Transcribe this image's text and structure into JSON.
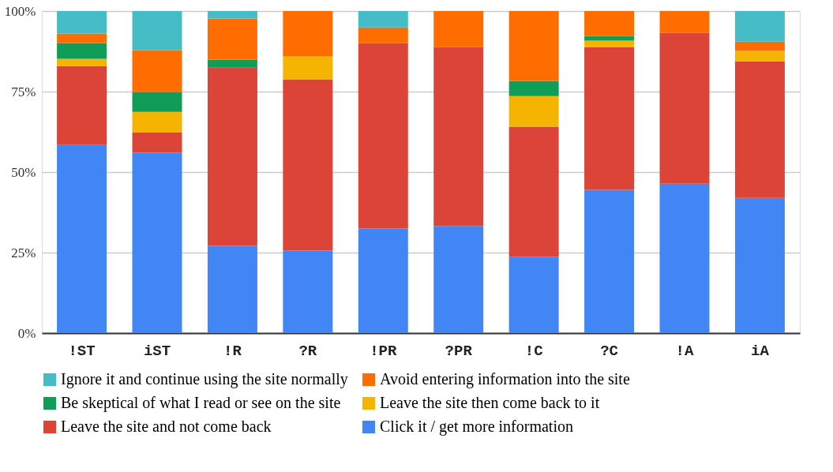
{
  "chart_data": {
    "type": "bar",
    "stacked": true,
    "categories": [
      "!ST",
      "iST",
      "!R",
      "?R",
      "!PR",
      "?PR",
      "!C",
      "?C",
      "!A",
      "iA"
    ],
    "series": [
      {
        "name": "Click it / get more information",
        "color": "#4285f4",
        "values": [
          58.4,
          56.0,
          27.1,
          25.6,
          32.5,
          33.3,
          23.7,
          44.5,
          46.4,
          42.0
        ]
      },
      {
        "name": "Leave the site and not come back",
        "color": "#db4437",
        "values": [
          24.5,
          6.4,
          55.3,
          53.2,
          57.5,
          55.5,
          40.4,
          44.3,
          46.8,
          42.4
        ]
      },
      {
        "name": "Leave the site then come back to it",
        "color": "#f4b400",
        "values": [
          2.3,
          6.3,
          0,
          7.1,
          0,
          0,
          9.5,
          2.0,
          0,
          3.2
        ]
      },
      {
        "name": "Be skeptical of what I read or see on the site",
        "color": "#0f9d58",
        "values": [
          4.9,
          6.2,
          2.5,
          0,
          0,
          0,
          4.7,
          1.4,
          0,
          0
        ]
      },
      {
        "name": "Avoid entering information into the site",
        "color": "#ff6d01",
        "values": [
          2.9,
          12.9,
          12.8,
          14.1,
          4.9,
          11.2,
          21.7,
          7.8,
          6.8,
          2.9
        ]
      },
      {
        "name": "Ignore it and continue using the site normally",
        "color": "#46bdc6",
        "values": [
          7.0,
          12.2,
          2.3,
          0,
          5.1,
          0,
          0,
          0,
          0,
          9.5
        ]
      }
    ],
    "ylim": [
      0,
      100
    ],
    "yticks": [
      {
        "value": 0,
        "label": "0%"
      },
      {
        "value": 25,
        "label": "25%"
      },
      {
        "value": 50,
        "label": "50%"
      },
      {
        "value": 75,
        "label": "75%"
      },
      {
        "value": 100,
        "label": "100%"
      }
    ],
    "grid": "y",
    "legend": "bottom"
  }
}
